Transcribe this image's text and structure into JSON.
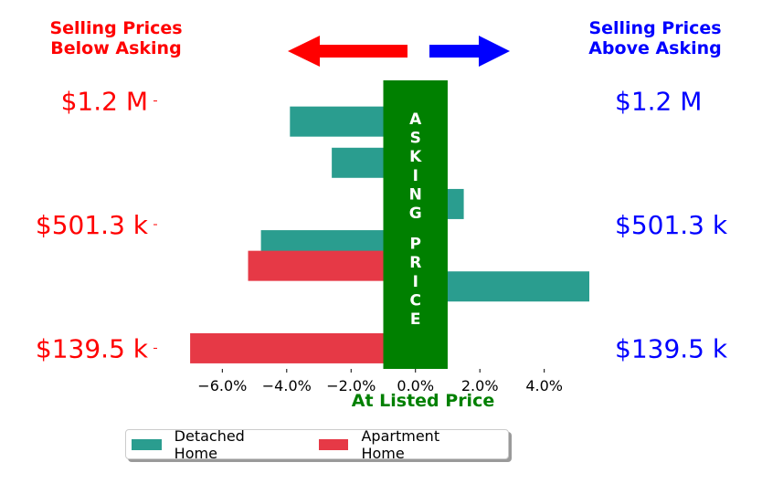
{
  "header": {
    "left_title_line1": "Selling Prices",
    "left_title_line2": "Below Asking",
    "right_title_line1": "Selling Prices",
    "right_title_line2": "Above Asking"
  },
  "colors": {
    "below": "#ff0000",
    "above": "#0000ff",
    "detached": "#2a9d8f",
    "apartment": "#e63946",
    "asking_band": "#008000"
  },
  "chart_data": {
    "type": "bar",
    "orientation": "horizontal",
    "xlabel": "At Listed Price",
    "xticks": [
      "−6.0%",
      "−4.0%",
      "−2.0%",
      "0.0%",
      "2.0%",
      "4.0%"
    ],
    "xtick_values": [
      -6,
      -4,
      -2,
      0,
      2,
      4
    ],
    "xlim": [
      -7.4,
      5.4
    ],
    "ylim": [
      0.5,
      7.5
    ],
    "price_labels": [
      {
        "y": 7,
        "label": "$1.2 M"
      },
      {
        "y": 4,
        "label": "$501.3 k"
      },
      {
        "y": 1,
        "label": "$139.5 k"
      }
    ],
    "center_band": {
      "xmin": -1.0,
      "xmax": 1.0,
      "text": "ASKING PRICE"
    },
    "series": [
      {
        "name": "Detached Home",
        "color": "#2a9d8f",
        "points": [
          {
            "y": 6.5,
            "x": -3.9
          },
          {
            "y": 5.5,
            "x": -2.6
          },
          {
            "y": 4.5,
            "x": 1.5
          },
          {
            "y": 3.5,
            "x": -4.8
          },
          {
            "y": 2.5,
            "x": 5.4
          }
        ]
      },
      {
        "name": "Apartment Home",
        "color": "#e63946",
        "points": [
          {
            "y": 3.0,
            "x": -5.2
          },
          {
            "y": 1.0,
            "x": -7.0
          }
        ]
      }
    ],
    "legend_position": "bottom-center"
  }
}
